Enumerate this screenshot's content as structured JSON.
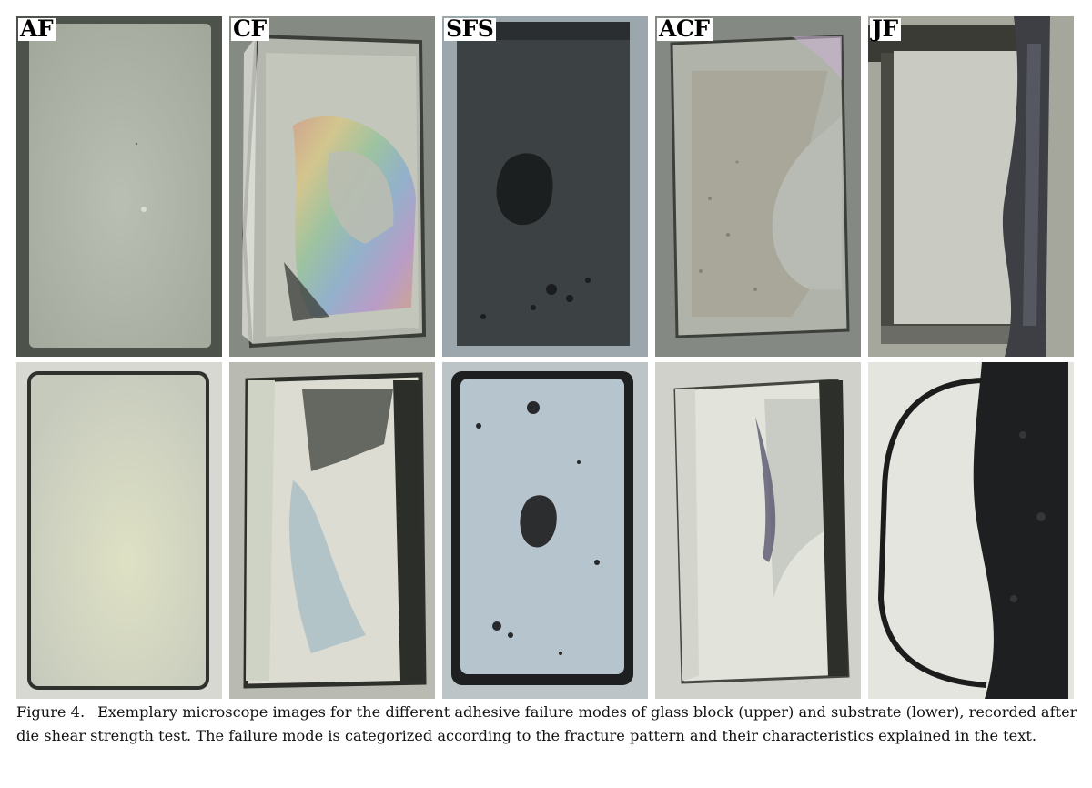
{
  "figure": {
    "labels": [
      "AF",
      "CF",
      "SFS",
      "ACF",
      "JF"
    ],
    "caption_label": "Figure 4.",
    "caption_text": "Exemplary microscope images for the different adhesive failure modes of glass block (upper) and substrate (lower), recorded after die shear strength test. The failure mode is categorized according to the fracture pattern and their characteristics explained in the text."
  }
}
